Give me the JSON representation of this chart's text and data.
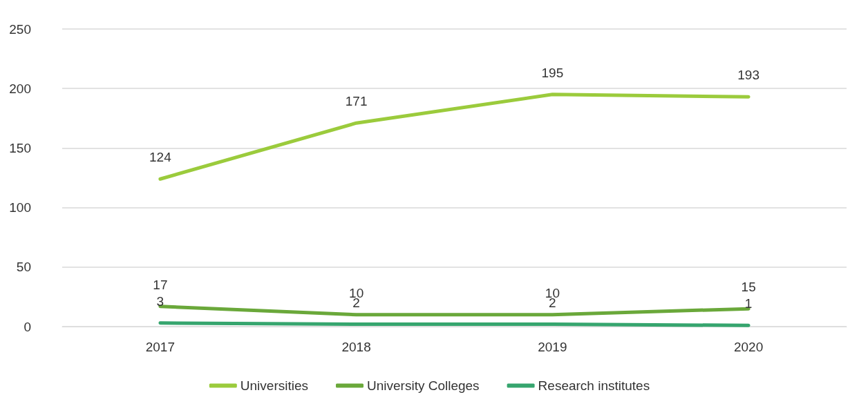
{
  "chart_data": {
    "type": "line",
    "categories": [
      "2017",
      "2018",
      "2019",
      "2020"
    ],
    "series": [
      {
        "name": "Universities",
        "color": "#9bcb3c",
        "values": [
          124,
          171,
          195,
          193
        ]
      },
      {
        "name": "University Colleges",
        "color": "#6aa83a",
        "values": [
          17,
          10,
          10,
          15
        ]
      },
      {
        "name": "Research institutes",
        "color": "#36a56e",
        "values": [
          3,
          2,
          2,
          1
        ]
      }
    ],
    "ylim": [
      0,
      250
    ],
    "yticks": [
      0,
      50,
      100,
      150,
      200,
      250
    ],
    "grid": "y",
    "legend": "bottom",
    "data_labels": true,
    "marker": "none",
    "line_style": "solid"
  }
}
